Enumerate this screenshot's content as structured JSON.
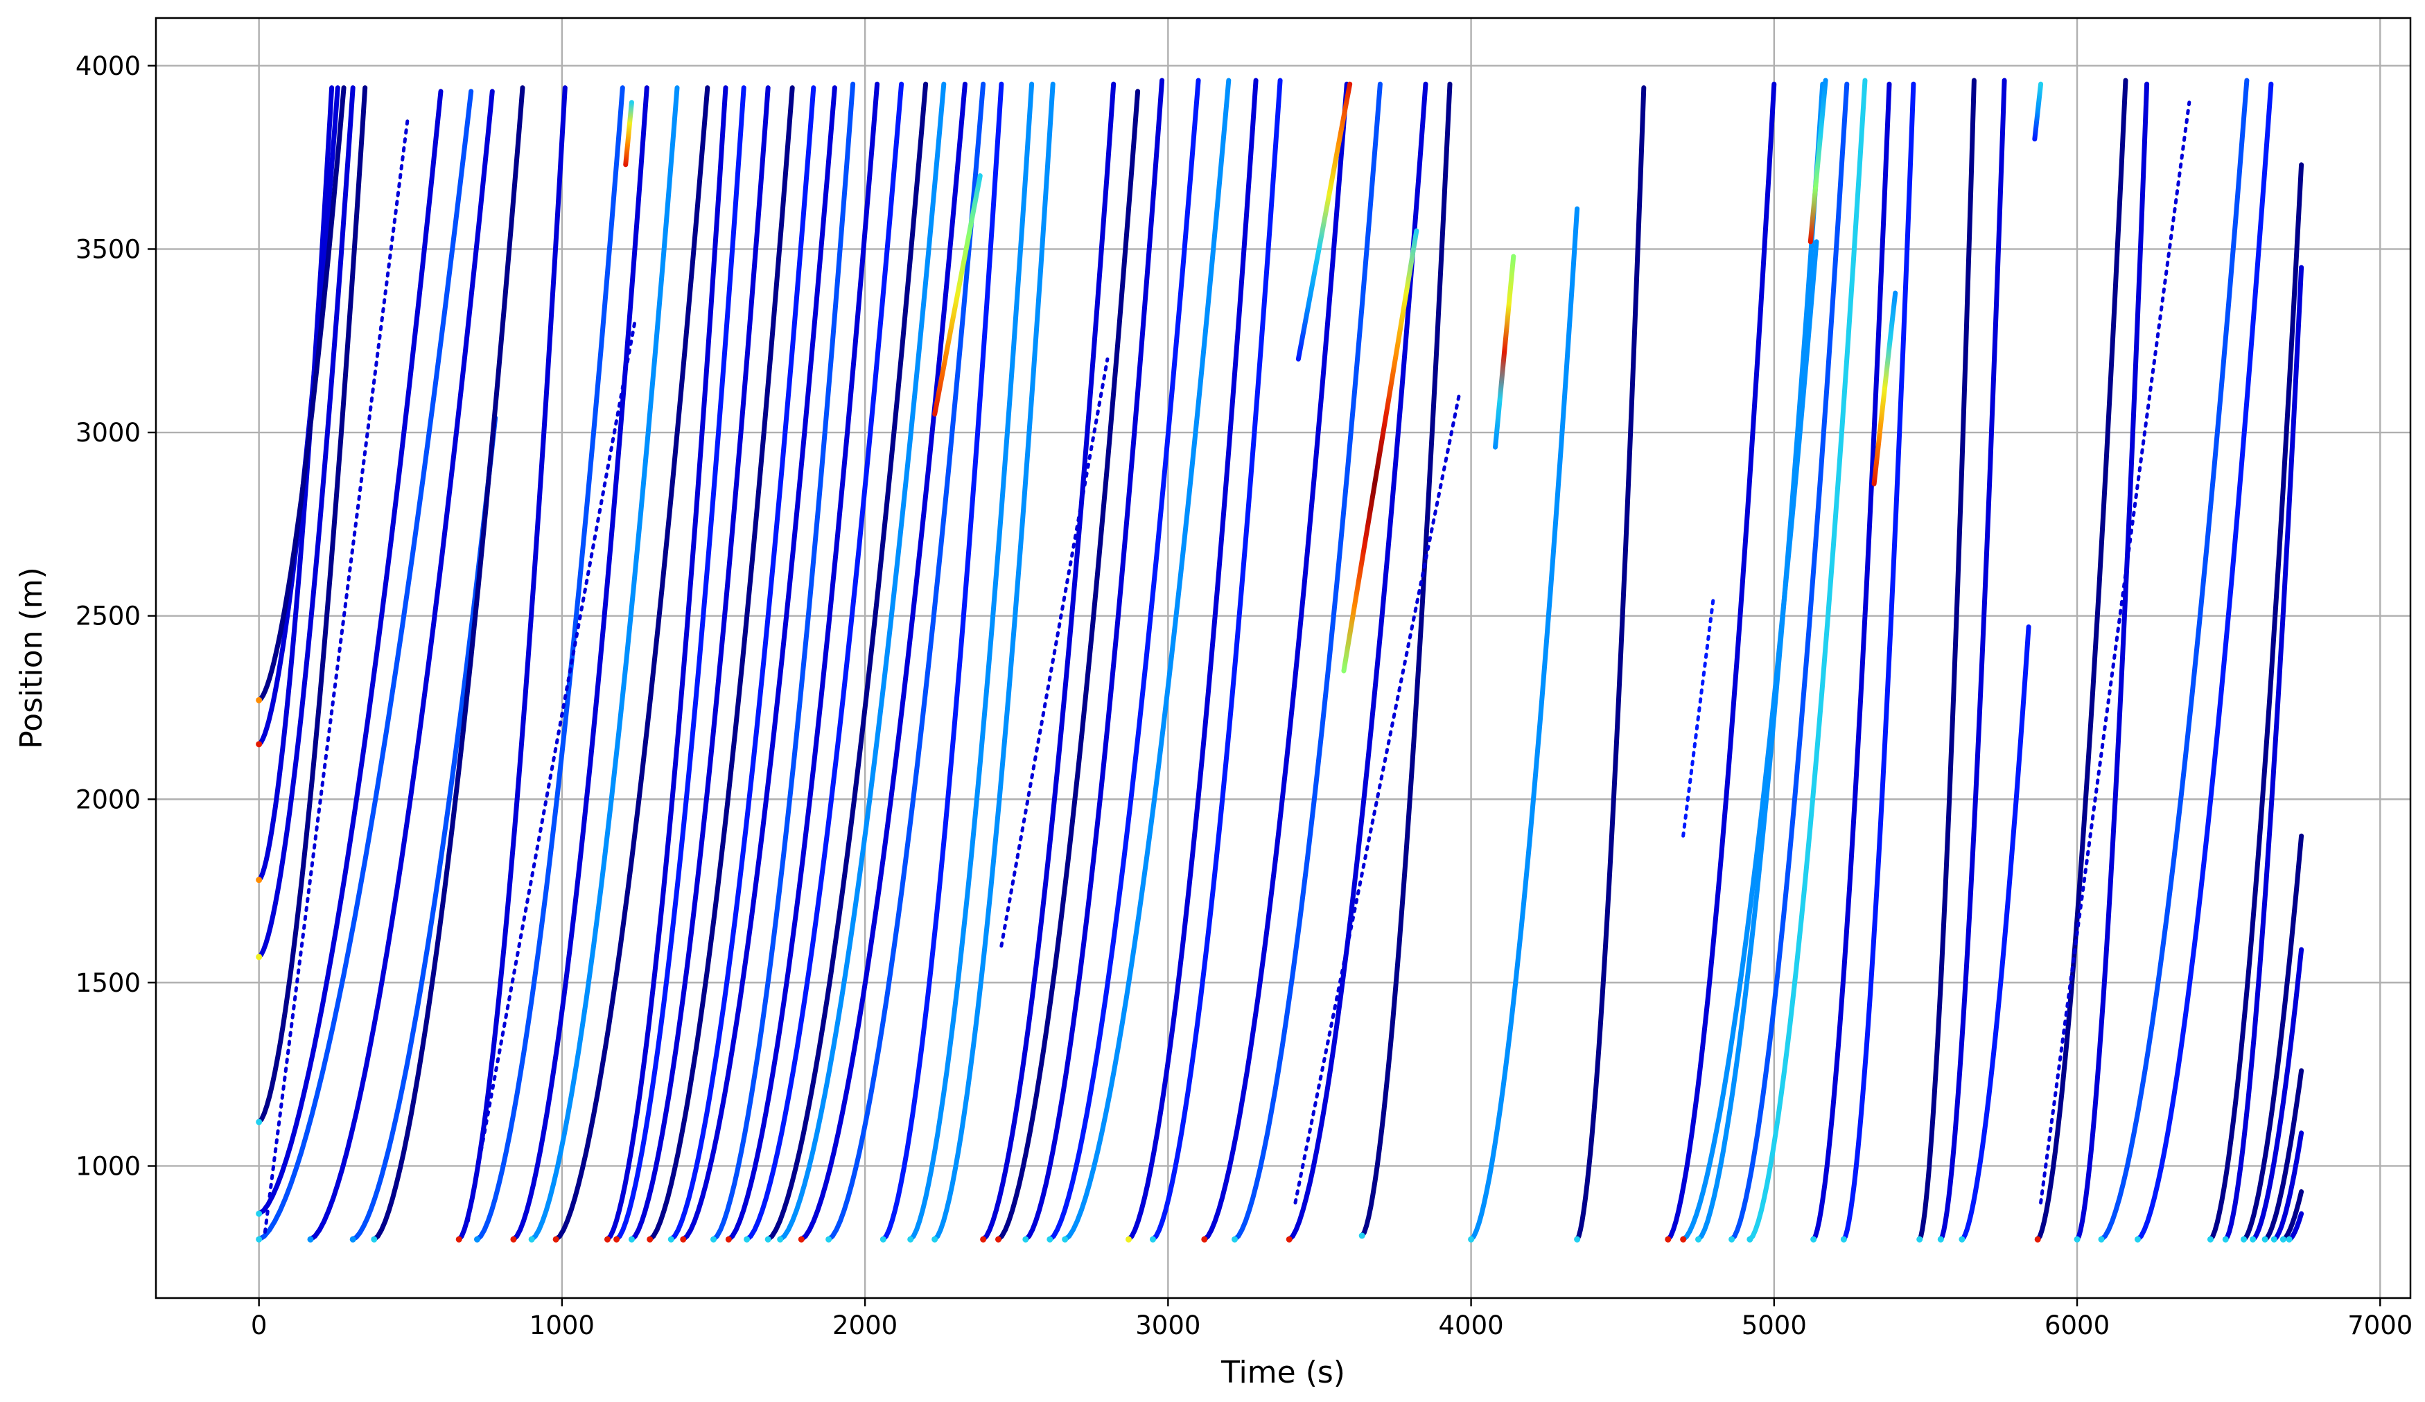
{
  "chart_data": {
    "type": "line",
    "title": "",
    "xlabel": "Time (s)",
    "ylabel": "Position (m)",
    "xlim": [
      -340,
      7100
    ],
    "ylim": [
      640,
      4130
    ],
    "x_ticks": [
      0,
      1000,
      2000,
      3000,
      4000,
      5000,
      6000,
      7000
    ],
    "y_ticks": [
      1000,
      1500,
      2000,
      2500,
      3000,
      3500,
      4000
    ],
    "grid": true,
    "legend": "none",
    "colormap": "jet",
    "colors": {
      "very_dark_blue": "#00008b",
      "dark_blue": "#0000d8",
      "blue": "#0019ff",
      "medium_blue": "#0050ff",
      "light_blue": "#0090ff",
      "cyan": "#20d0f0",
      "green": "#8cff6e",
      "yellow": "#f0f020",
      "orange": "#ff8c00",
      "red": "#e41a00",
      "dark_red": "#8b0000"
    },
    "trajectories": [
      {
        "t0": 0,
        "t1": 260,
        "p0": 2150,
        "p1": 3940,
        "color": "dark_blue",
        "start_color": "red"
      },
      {
        "t0": 0,
        "t1": 240,
        "p0": 1780,
        "p1": 3940,
        "color": "dark_blue",
        "start_color": "orange"
      },
      {
        "t0": 0,
        "t1": 280,
        "p0": 2270,
        "p1": 3940,
        "color": "very_dark_blue",
        "start_color": "orange"
      },
      {
        "t0": 0,
        "t1": 310,
        "p0": 1570,
        "p1": 3940,
        "color": "dark_blue",
        "start_color": "yellow"
      },
      {
        "t0": 0,
        "t1": 350,
        "p0": 1120,
        "p1": 3940,
        "color": "very_dark_blue",
        "start_color": "cyan"
      },
      {
        "t0": 0,
        "t1": 600,
        "p0": 870,
        "p1": 3930,
        "color": "dark_blue",
        "start_color": "cyan"
      },
      {
        "t0": 0,
        "t1": 700,
        "p0": 800,
        "p1": 3930,
        "color": "medium_blue",
        "start_color": "cyan"
      },
      {
        "t0": 170,
        "t1": 770,
        "p0": 800,
        "p1": 3930,
        "color": "dark_blue",
        "start_color": "light_blue"
      },
      {
        "t0": 310,
        "t1": 780,
        "p0": 800,
        "p1": 3040,
        "color": "medium_blue",
        "start_color": "light_blue"
      },
      {
        "t0": 380,
        "t1": 870,
        "p0": 800,
        "p1": 3940,
        "color": "very_dark_blue",
        "start_color": "cyan"
      },
      {
        "t0": 660,
        "t1": 1010,
        "p0": 800,
        "p1": 3940,
        "color": "dark_blue",
        "start_color": "red"
      },
      {
        "t0": 720,
        "t1": 1200,
        "p0": 800,
        "p1": 3940,
        "color": "medium_blue",
        "start_color": "light_blue"
      },
      {
        "t0": 840,
        "t1": 1280,
        "p0": 800,
        "p1": 3940,
        "color": "dark_blue",
        "start_color": "red"
      },
      {
        "t0": 900,
        "t1": 1380,
        "p0": 800,
        "p1": 3940,
        "color": "light_blue",
        "start_color": "cyan"
      },
      {
        "t0": 980,
        "t1": 1480,
        "p0": 800,
        "p1": 3940,
        "color": "very_dark_blue",
        "start_color": "red"
      },
      {
        "t0": 1150,
        "t1": 1540,
        "p0": 800,
        "p1": 3940,
        "color": "dark_blue",
        "start_color": "red"
      },
      {
        "t0": 1180,
        "t1": 1600,
        "p0": 800,
        "p1": 3940,
        "color": "blue",
        "start_color": "red"
      },
      {
        "t0": 1230,
        "t1": 1680,
        "p0": 800,
        "p1": 3940,
        "color": "dark_blue",
        "start_color": "cyan"
      },
      {
        "t0": 1290,
        "t1": 1760,
        "p0": 800,
        "p1": 3940,
        "color": "very_dark_blue",
        "start_color": "red"
      },
      {
        "t0": 1360,
        "t1": 1830,
        "p0": 800,
        "p1": 3940,
        "color": "blue",
        "start_color": "cyan"
      },
      {
        "t0": 1400,
        "t1": 1900,
        "p0": 800,
        "p1": 3940,
        "color": "dark_blue",
        "start_color": "red"
      },
      {
        "t0": 1500,
        "t1": 1960,
        "p0": 800,
        "p1": 3950,
        "color": "medium_blue",
        "start_color": "cyan"
      },
      {
        "t0": 1550,
        "t1": 2040,
        "p0": 800,
        "p1": 3950,
        "color": "dark_blue",
        "start_color": "red"
      },
      {
        "t0": 1610,
        "t1": 2120,
        "p0": 800,
        "p1": 3950,
        "color": "blue",
        "start_color": "cyan"
      },
      {
        "t0": 1680,
        "t1": 2200,
        "p0": 800,
        "p1": 3950,
        "color": "very_dark_blue",
        "start_color": "cyan"
      },
      {
        "t0": 1720,
        "t1": 2260,
        "p0": 800,
        "p1": 3950,
        "color": "light_blue",
        "start_color": "cyan"
      },
      {
        "t0": 1790,
        "t1": 2330,
        "p0": 800,
        "p1": 3950,
        "color": "dark_blue",
        "start_color": "red"
      },
      {
        "t0": 1880,
        "t1": 2390,
        "p0": 800,
        "p1": 3950,
        "color": "medium_blue",
        "start_color": "cyan"
      },
      {
        "t0": 2060,
        "t1": 2450,
        "p0": 800,
        "p1": 3950,
        "color": "blue",
        "start_color": "cyan"
      },
      {
        "t0": 2150,
        "t1": 2550,
        "p0": 800,
        "p1": 3950,
        "color": "light_blue",
        "start_color": "cyan"
      },
      {
        "t0": 2230,
        "t1": 2620,
        "p0": 800,
        "p1": 3950,
        "color": "light_blue",
        "start_color": "cyan"
      },
      {
        "t0": 2390,
        "t1": 2820,
        "p0": 800,
        "p1": 3950,
        "color": "dark_blue",
        "start_color": "red"
      },
      {
        "t0": 2440,
        "t1": 2900,
        "p0": 800,
        "p1": 3930,
        "color": "very_dark_blue",
        "start_color": "red"
      },
      {
        "t0": 2530,
        "t1": 2980,
        "p0": 800,
        "p1": 3960,
        "color": "dark_blue",
        "start_color": "cyan"
      },
      {
        "t0": 2610,
        "t1": 3100,
        "p0": 800,
        "p1": 3960,
        "color": "blue",
        "start_color": "cyan"
      },
      {
        "t0": 2660,
        "t1": 3200,
        "p0": 800,
        "p1": 3960,
        "color": "light_blue",
        "start_color": "cyan"
      },
      {
        "t0": 2870,
        "t1": 3290,
        "p0": 800,
        "p1": 3960,
        "color": "dark_blue",
        "start_color": "yellow"
      },
      {
        "t0": 2950,
        "t1": 3370,
        "p0": 800,
        "p1": 3960,
        "color": "blue",
        "start_color": "cyan"
      },
      {
        "t0": 3120,
        "t1": 3590,
        "p0": 800,
        "p1": 3950,
        "color": "dark_blue",
        "start_color": "red"
      },
      {
        "t0": 3220,
        "t1": 3700,
        "p0": 800,
        "p1": 3950,
        "color": "medium_blue",
        "start_color": "cyan"
      },
      {
        "t0": 3400,
        "t1": 3850,
        "p0": 800,
        "p1": 3950,
        "color": "dark_blue",
        "start_color": "red"
      },
      {
        "t0": 3640,
        "t1": 3930,
        "p0": 810,
        "p1": 3950,
        "color": "very_dark_blue",
        "start_color": "cyan"
      },
      {
        "t0": 4000,
        "t1": 4350,
        "p0": 800,
        "p1": 3610,
        "color": "light_blue",
        "start_color": "cyan"
      },
      {
        "t0": 4350,
        "t1": 4570,
        "p0": 800,
        "p1": 3940,
        "color": "very_dark_blue",
        "start_color": "cyan"
      },
      {
        "t0": 4650,
        "t1": 5000,
        "p0": 800,
        "p1": 3950,
        "color": "dark_blue",
        "start_color": "red"
      },
      {
        "t0": 4700,
        "t1": 5140,
        "p0": 800,
        "p1": 3520,
        "color": "light_blue",
        "start_color": "red"
      },
      {
        "t0": 4750,
        "t1": 5160,
        "p0": 800,
        "p1": 3950,
        "color": "light_blue",
        "start_color": "cyan"
      },
      {
        "t0": 4860,
        "t1": 5240,
        "p0": 800,
        "p1": 3950,
        "color": "medium_blue",
        "start_color": "cyan"
      },
      {
        "t0": 4920,
        "t1": 5300,
        "p0": 800,
        "p1": 3960,
        "color": "cyan",
        "start_color": "cyan"
      },
      {
        "t0": 5130,
        "t1": 5380,
        "p0": 800,
        "p1": 3950,
        "color": "dark_blue",
        "start_color": "cyan"
      },
      {
        "t0": 5230,
        "t1": 5460,
        "p0": 800,
        "p1": 3950,
        "color": "blue",
        "start_color": "cyan"
      },
      {
        "t0": 5480,
        "t1": 5660,
        "p0": 800,
        "p1": 3960,
        "color": "very_dark_blue",
        "start_color": "cyan"
      },
      {
        "t0": 5550,
        "t1": 5760,
        "p0": 800,
        "p1": 3960,
        "color": "dark_blue",
        "start_color": "cyan"
      },
      {
        "t0": 5620,
        "t1": 5840,
        "p0": 800,
        "p1": 2470,
        "color": "blue",
        "start_color": "cyan"
      },
      {
        "t0": 5870,
        "t1": 6160,
        "p0": 800,
        "p1": 3960,
        "color": "very_dark_blue",
        "start_color": "red"
      },
      {
        "t0": 6000,
        "t1": 6230,
        "p0": 800,
        "p1": 3950,
        "color": "dark_blue",
        "start_color": "cyan"
      },
      {
        "t0": 6080,
        "t1": 6560,
        "p0": 800,
        "p1": 3960,
        "color": "medium_blue",
        "start_color": "cyan"
      },
      {
        "t0": 6200,
        "t1": 6640,
        "p0": 800,
        "p1": 3950,
        "color": "blue",
        "start_color": "cyan"
      },
      {
        "t0": 6440,
        "t1": 6740,
        "p0": 800,
        "p1": 3730,
        "color": "very_dark_blue",
        "start_color": "cyan"
      },
      {
        "t0": 6490,
        "t1": 6740,
        "p0": 800,
        "p1": 3450,
        "color": "dark_blue",
        "start_color": "cyan"
      },
      {
        "t0": 6550,
        "t1": 6740,
        "p0": 800,
        "p1": 1900,
        "color": "very_dark_blue",
        "start_color": "cyan"
      },
      {
        "t0": 6580,
        "t1": 6740,
        "p0": 800,
        "p1": 1590,
        "color": "dark_blue",
        "start_color": "cyan"
      },
      {
        "t0": 6620,
        "t1": 6740,
        "p0": 800,
        "p1": 1260,
        "color": "very_dark_blue",
        "start_color": "cyan"
      },
      {
        "t0": 6650,
        "t1": 6740,
        "p0": 800,
        "p1": 1090,
        "color": "dark_blue",
        "start_color": "cyan"
      },
      {
        "t0": 6680,
        "t1": 6740,
        "p0": 800,
        "p1": 930,
        "color": "very_dark_blue",
        "start_color": "cyan"
      },
      {
        "t0": 6700,
        "t1": 6740,
        "p0": 800,
        "p1": 870,
        "color": "dark_blue",
        "start_color": "cyan"
      }
    ],
    "linear_segments": [
      {
        "t0": 2230,
        "t1": 2380,
        "p0": 3050,
        "p1": 3700,
        "colors": [
          "red",
          "orange",
          "yellow",
          "green",
          "cyan"
        ]
      },
      {
        "t0": 3580,
        "t1": 3820,
        "p0": 2350,
        "p1": 3550,
        "colors": [
          "green",
          "orange",
          "red",
          "dark_red",
          "red",
          "orange",
          "yellow",
          "cyan"
        ]
      },
      {
        "t0": 3430,
        "t1": 3600,
        "p0": 3200,
        "p1": 3950,
        "colors": [
          "blue",
          "light_blue",
          "cyan",
          "yellow",
          "orange",
          "red"
        ]
      },
      {
        "t0": 4080,
        "t1": 4140,
        "p0": 2960,
        "p1": 3480,
        "colors": [
          "light_blue",
          "cyan",
          "red",
          "yellow",
          "green"
        ]
      },
      {
        "t0": 5330,
        "t1": 5400,
        "p0": 2860,
        "p1": 3380,
        "colors": [
          "red",
          "orange",
          "yellow",
          "cyan",
          "light_blue"
        ]
      },
      {
        "t0": 5120,
        "t1": 5170,
        "p0": 3520,
        "p1": 3960,
        "colors": [
          "red",
          "green",
          "cyan",
          "light_blue"
        ]
      },
      {
        "t0": 1210,
        "t1": 1230,
        "p0": 3730,
        "p1": 3900,
        "colors": [
          "red",
          "orange",
          "yellow",
          "cyan"
        ]
      },
      {
        "t0": 5860,
        "t1": 5880,
        "p0": 3800,
        "p1": 3950,
        "colors": [
          "blue",
          "light_blue",
          "cyan"
        ]
      }
    ],
    "dotted_trajectories": [
      {
        "t0": 20,
        "t1": 490,
        "p0": 820,
        "p1": 3850,
        "color": "dark_blue"
      },
      {
        "t0": 690,
        "t1": 1240,
        "p0": 850,
        "p1": 3300,
        "color": "dark_blue"
      },
      {
        "t0": 2450,
        "t1": 2800,
        "p0": 1600,
        "p1": 3200,
        "color": "dark_blue"
      },
      {
        "t0": 3420,
        "t1": 3960,
        "p0": 900,
        "p1": 3100,
        "color": "dark_blue"
      },
      {
        "t0": 5880,
        "t1": 6370,
        "p0": 900,
        "p1": 3900,
        "color": "dark_blue"
      },
      {
        "t0": 4700,
        "t1": 4800,
        "p0": 1900,
        "p1": 2550,
        "color": "blue"
      }
    ]
  }
}
